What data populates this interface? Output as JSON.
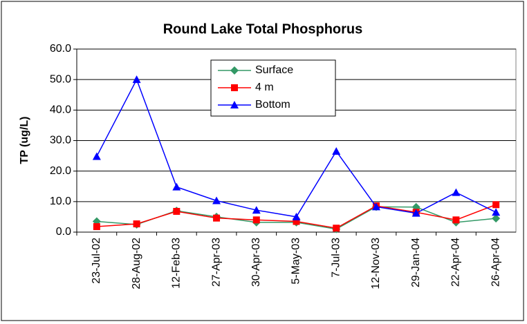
{
  "chart_data": {
    "type": "line",
    "title": "Round Lake Total Phosphorus",
    "y_label": "TP (ug/L)",
    "categories": [
      "23-Jul-02",
      "28-Aug-02",
      "12-Feb-03",
      "27-Apr-03",
      "30-Apr-03",
      "5-May-03",
      "7-Jul-03",
      "12-Nov-03",
      "29-Jan-04",
      "22-Apr-04",
      "26-Apr-04"
    ],
    "series": [
      {
        "name": "Surface",
        "color": "#339966",
        "marker": "diamond",
        "values": [
          3.5,
          2.5,
          7.0,
          5.0,
          3.2,
          3.2,
          1.0,
          8.3,
          8.2,
          3.2,
          4.5
        ]
      },
      {
        "name": "4 m",
        "color": "#ff0000",
        "marker": "square",
        "values": [
          1.8,
          2.7,
          6.8,
          4.6,
          4.0,
          3.5,
          1.3,
          8.6,
          6.5,
          4.0,
          9.0
        ]
      },
      {
        "name": "Bottom",
        "color": "#0000ff",
        "marker": "triangle",
        "values": [
          24.8,
          50.0,
          14.8,
          10.3,
          7.2,
          5.0,
          26.5,
          8.3,
          6.2,
          13.0,
          6.5
        ]
      }
    ],
    "ylim": [
      0,
      60
    ],
    "yticks": [
      {
        "value": 0,
        "label": "0.0"
      },
      {
        "value": 10,
        "label": "10.0"
      },
      {
        "value": 20,
        "label": "20.0"
      },
      {
        "value": 30,
        "label": "30.0"
      },
      {
        "value": 40,
        "label": "40.0"
      },
      {
        "value": 50,
        "label": "50.0"
      },
      {
        "value": 60,
        "label": "60.0"
      }
    ],
    "grid": true,
    "legend": "top"
  }
}
